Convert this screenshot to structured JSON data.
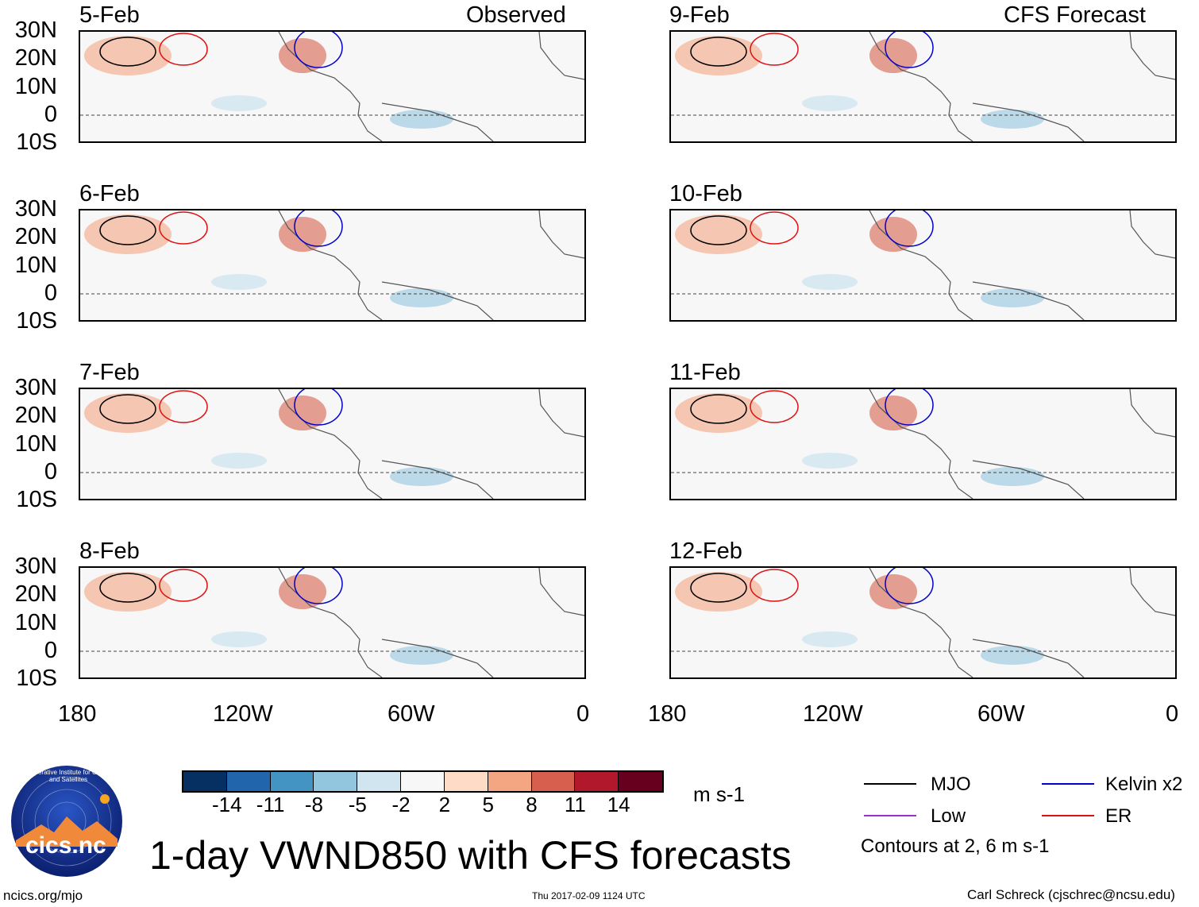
{
  "panels_left": [
    {
      "date": "5-Feb",
      "label": "Observed"
    },
    {
      "date": "6-Feb",
      "label": ""
    },
    {
      "date": "7-Feb",
      "label": ""
    },
    {
      "date": "8-Feb",
      "label": ""
    }
  ],
  "panels_right": [
    {
      "date": "9-Feb",
      "label": "CFS Forecast"
    },
    {
      "date": "10-Feb",
      "label": ""
    },
    {
      "date": "11-Feb",
      "label": ""
    },
    {
      "date": "12-Feb",
      "label": ""
    }
  ],
  "lat_labels": [
    "30N",
    "20N",
    "10N",
    "0",
    "10S"
  ],
  "lon_labels": [
    "180",
    "120W",
    "60W",
    "0"
  ],
  "colorbar": {
    "colors": [
      "#053061",
      "#2166ac",
      "#4393c3",
      "#92c5de",
      "#d1e5f0",
      "#f7f7f7",
      "#fddbc7",
      "#f4a582",
      "#d6604d",
      "#b2182b",
      "#67001f"
    ],
    "labels": [
      "-14",
      "-11",
      "-8",
      "-5",
      "-2",
      "2",
      "5",
      "8",
      "11",
      "14"
    ],
    "units": "m s-1"
  },
  "legend": {
    "items": [
      {
        "name": "MJO",
        "color": "#000000"
      },
      {
        "name": "Kelvin x2",
        "color": "#0000cc"
      },
      {
        "name": "Low",
        "color": "#9932cc"
      },
      {
        "name": "ER",
        "color": "#e01010"
      }
    ],
    "note": "Contours at 2, 6 m s-1"
  },
  "title": "1-day VWND850 with CFS forecasts",
  "logo_text": "cics.nc",
  "logo_ring_text": "Cooperative Institute for Climate and Satellites",
  "footer": {
    "left": "ncics.org/mjo",
    "center": "Thu 2017-02-09 1124 UTC",
    "right": "Carl Schreck (cjschrec@ncsu.edu)"
  }
}
